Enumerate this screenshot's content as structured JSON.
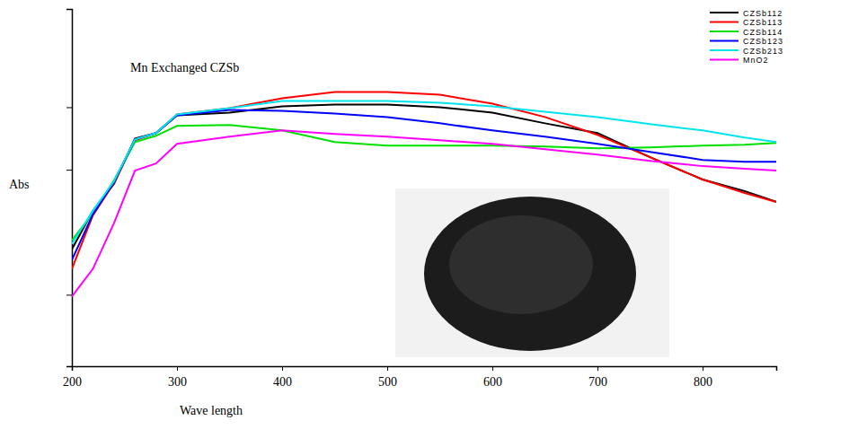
{
  "chart_data": {
    "type": "line",
    "title": "Mn Exchanged CZSb",
    "x_label": "Wave length",
    "y_label": "Abs",
    "x": [
      200,
      220,
      240,
      260,
      280,
      300,
      350,
      400,
      450,
      500,
      550,
      600,
      650,
      700,
      750,
      800,
      840,
      870
    ],
    "series": [
      {
        "name": "CZSb112",
        "color": "#000000",
        "values": [
          1.31,
          1.74,
          2.04,
          2.55,
          2.61,
          2.81,
          2.84,
          2.91,
          2.93,
          2.93,
          2.9,
          2.84,
          2.72,
          2.61,
          2.34,
          2.09,
          1.96,
          1.84
        ]
      },
      {
        "name": "CZSb113",
        "color": "#ff0000",
        "values": [
          1.09,
          1.69,
          2.05,
          2.53,
          2.61,
          2.82,
          2.89,
          3.0,
          3.07,
          3.07,
          3.04,
          2.94,
          2.79,
          2.59,
          2.34,
          2.09,
          1.94,
          1.84
        ]
      },
      {
        "name": "CZSb114",
        "color": "#00e000",
        "values": [
          1.41,
          1.71,
          2.08,
          2.51,
          2.58,
          2.69,
          2.7,
          2.64,
          2.51,
          2.47,
          2.47,
          2.47,
          2.46,
          2.44,
          2.45,
          2.47,
          2.48,
          2.5
        ]
      },
      {
        "name": "CZSb123",
        "color": "#0000ff",
        "values": [
          1.19,
          1.7,
          2.06,
          2.54,
          2.61,
          2.81,
          2.87,
          2.86,
          2.83,
          2.79,
          2.72,
          2.64,
          2.57,
          2.49,
          2.4,
          2.31,
          2.29,
          2.29
        ]
      },
      {
        "name": "CZSb213",
        "color": "#00e5ee",
        "values": [
          1.37,
          1.74,
          2.07,
          2.54,
          2.61,
          2.82,
          2.89,
          2.97,
          2.97,
          2.97,
          2.95,
          2.91,
          2.85,
          2.79,
          2.71,
          2.64,
          2.56,
          2.51
        ]
      },
      {
        "name": "MnO2",
        "color": "#ff00ff",
        "values": [
          0.78,
          1.09,
          1.6,
          2.19,
          2.27,
          2.49,
          2.57,
          2.64,
          2.6,
          2.57,
          2.53,
          2.49,
          2.43,
          2.37,
          2.3,
          2.24,
          2.21,
          2.19
        ]
      }
    ],
    "xlim": [
      200,
      870
    ],
    "xticks": [
      200,
      300,
      400,
      500,
      600,
      700,
      800
    ],
    "ylim": [
      0,
      4
    ],
    "yticks": [
      0.8,
      2.2,
      2.9,
      4
    ],
    "tick_labels": "x",
    "grid": false,
    "legend": "top-right"
  }
}
